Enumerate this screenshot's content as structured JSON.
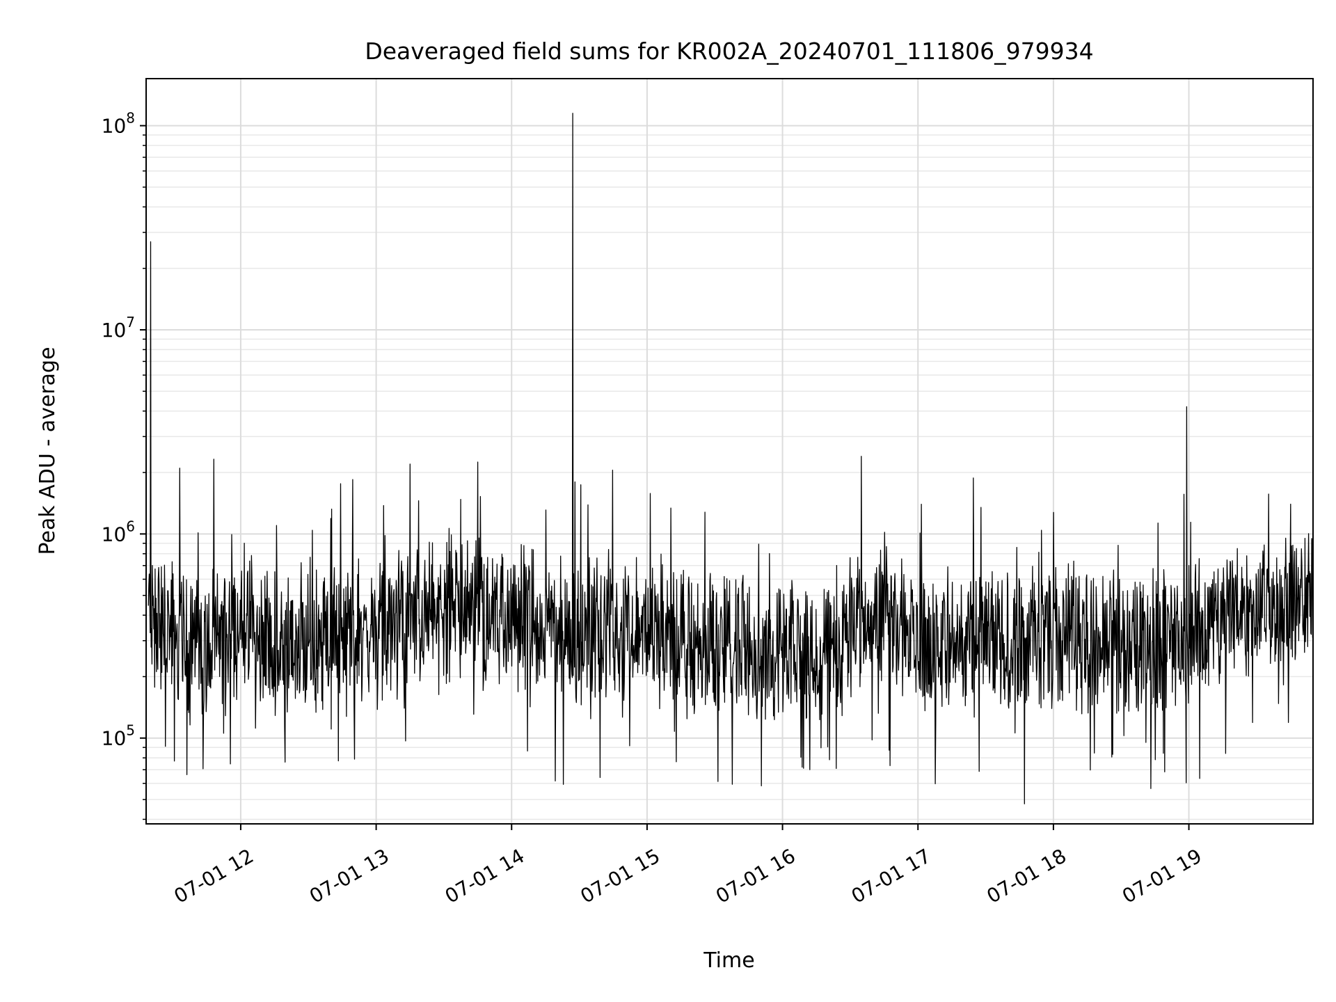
{
  "chart_data": {
    "type": "line",
    "title": "Deaveraged field sums for KR002A_20240701_111806_979934",
    "xlabel": "Time",
    "ylabel": "Peak ADU - average",
    "y_scale": "log",
    "ylim": [
      38000,
      170000000
    ],
    "xlim": [
      "2024-07-01 11:18:06",
      "2024-07-01 19:55:00"
    ],
    "grid": true,
    "line_color": "#000000",
    "x_ticks": [
      {
        "value": "2024-07-01 12:00",
        "label": "07-01 12"
      },
      {
        "value": "2024-07-01 13:00",
        "label": "07-01 13"
      },
      {
        "value": "2024-07-01 14:00",
        "label": "07-01 14"
      },
      {
        "value": "2024-07-01 15:00",
        "label": "07-01 15"
      },
      {
        "value": "2024-07-01 16:00",
        "label": "07-01 16"
      },
      {
        "value": "2024-07-01 17:00",
        "label": "07-01 17"
      },
      {
        "value": "2024-07-01 18:00",
        "label": "07-01 18"
      },
      {
        "value": "2024-07-01 19:00",
        "label": "07-01 19"
      }
    ],
    "y_ticks": [
      {
        "value": 100000,
        "base": "10",
        "exp": "5"
      },
      {
        "value": 1000000,
        "base": "10",
        "exp": "6"
      },
      {
        "value": 10000000,
        "base": "10",
        "exp": "7"
      },
      {
        "value": 100000000,
        "base": "10",
        "exp": "8"
      }
    ],
    "series": [
      {
        "x": [
          "2024-07-01 11:18",
          "2024-07-01 11:40",
          "2024-07-01 12:00",
          "2024-07-01 12:20",
          "2024-07-01 12:40",
          "2024-07-01 13:00",
          "2024-07-01 13:20",
          "2024-07-01 13:40",
          "2024-07-01 14:00",
          "2024-07-01 14:20",
          "2024-07-01 14:40",
          "2024-07-01 15:00",
          "2024-07-01 15:20",
          "2024-07-01 15:40",
          "2024-07-01 16:00",
          "2024-07-01 16:20",
          "2024-07-01 16:40",
          "2024-07-01 17:00",
          "2024-07-01 17:20",
          "2024-07-01 17:40",
          "2024-07-01 18:00",
          "2024-07-01 18:20",
          "2024-07-01 18:40",
          "2024-07-01 19:00",
          "2024-07-01 19:20",
          "2024-07-01 19:40",
          "2024-07-01 19:55"
        ],
        "y": [
          420000,
          250000,
          360000,
          260000,
          310000,
          330000,
          390000,
          460000,
          390000,
          330000,
          350000,
          330000,
          280000,
          300000,
          240000,
          270000,
          450000,
          280000,
          300000,
          290000,
          310000,
          280000,
          290000,
          300000,
          440000,
          420000,
          470000
        ]
      }
    ],
    "spikes": [
      {
        "x": "2024-07-01 11:20",
        "y": 27000000
      },
      {
        "x": "2024-07-01 11:33",
        "y": 2100000
      },
      {
        "x": "2024-07-01 13:15",
        "y": 2200000
      },
      {
        "x": "2024-07-01 13:45",
        "y": 2250000
      },
      {
        "x": "2024-07-01 14:27",
        "y": 115000000
      },
      {
        "x": "2024-07-01 14:28",
        "y": 1800000
      },
      {
        "x": "2024-07-01 16:35",
        "y": 2400000
      },
      {
        "x": "2024-07-01 18:59",
        "y": 4200000
      },
      {
        "x": "2024-07-01 19:45",
        "y": 1400000
      }
    ]
  }
}
